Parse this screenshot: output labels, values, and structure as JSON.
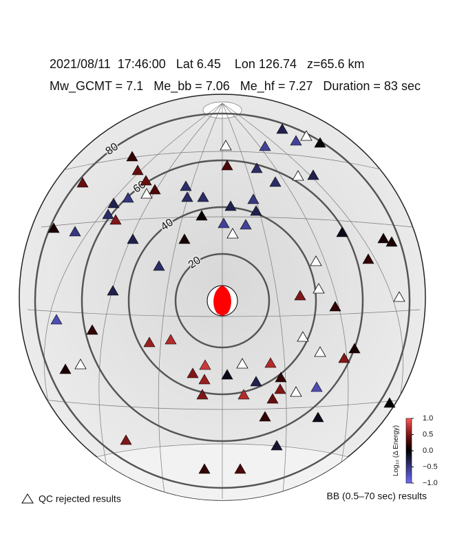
{
  "header": {
    "line1": "2021/08/11  17:46:00   Lat 6.45    Lon 126.74   z=65.6 km",
    "line2": "Mw_GCMT = 7.1   Me_bb = 7.06   Me_hf = 7.27   Duration = 83 sec"
  },
  "distance_rings": [
    20,
    40,
    60,
    80
  ],
  "stations": [
    -0.3,
    null,
    -0.6,
    -0.05,
    null,
    -0.6,
    0.2,
    0.3,
    -0.4,
    null,
    -0.3,
    0.4,
    -0.4,
    0.4,
    0.4,
    -0.4,
    0.3,
    null,
    -0.5,
    -0.4,
    -0.3,
    -0.4,
    -0.5,
    -0.3,
    -0.4,
    0.5,
    -0.3,
    0.05,
    -0.6,
    -0.6,
    0.1,
    -0.5,
    null,
    -0.1,
    -0.3,
    0.1,
    0.1,
    0.1,
    -0.4,
    null,
    0.2,
    null,
    0.5,
    -0.3,
    null,
    0.2,
    -0.7,
    0.2,
    null,
    0.6,
    0.7,
    null,
    0.1,
    0.5,
    0.1,
    null,
    0.8,
    null,
    0.7,
    0.5,
    -0.1,
    0.6,
    0.2,
    -0.3,
    0.5,
    -0.7,
    null,
    0.7,
    0.5,
    0.4,
    0,
    0.2,
    -0.1,
    -0.2,
    0.5,
    0.2,
    0.3
  ],
  "legend": {
    "rejected": "QC rejected results"
  },
  "colorbar": {
    "title": "Log₁₀ (Δ Energy)",
    "lim": [
      -1,
      1
    ],
    "ticks": [
      {
        "value": 1,
        "label": "1.0"
      },
      {
        "value": 0.5,
        "label": "0.5"
      },
      {
        "value": 0,
        "label": "0.0"
      },
      {
        "value": -0.5,
        "label": "−0.5"
      },
      {
        "value": -1,
        "label": "−1.0"
      }
    ]
  },
  "footer": "BB (0.5–70 sec) results"
}
